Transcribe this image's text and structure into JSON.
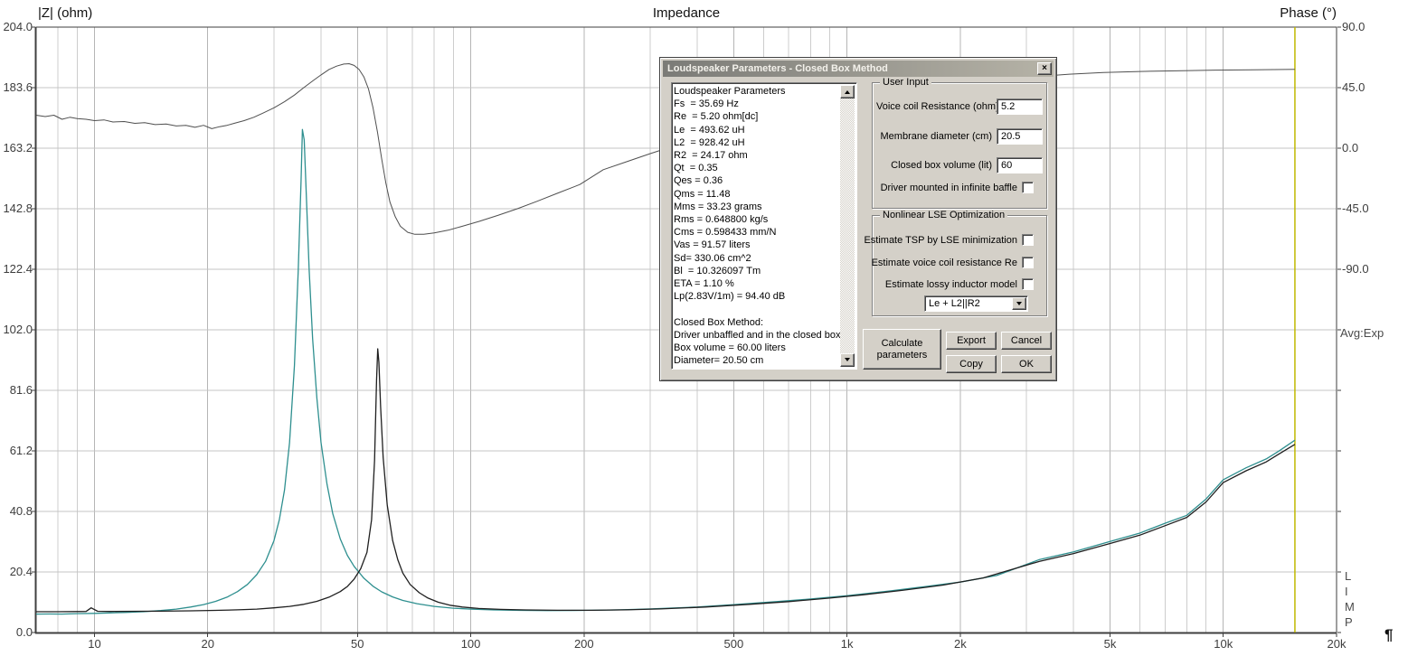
{
  "window": {
    "title": "Loudspeaker Parameters - Closed Box Method",
    "close_glyph": "×"
  },
  "parameters_list": {
    "lines": [
      "Loudspeaker Parameters",
      "Fs  = 35.69 Hz",
      "Re  = 5.20 ohm[dc]",
      "Le  = 493.62 uH",
      "L2  = 928.42 uH",
      "R2  = 24.17 ohm",
      "Qt  = 0.35",
      "Qes = 0.36",
      "Qms = 11.48",
      "Mms = 33.23 grams",
      "Rms = 0.648800 kg/s",
      "Cms = 0.598433 mm/N",
      "Vas = 91.57 liters",
      "Sd= 330.06 cm^2",
      "Bl  = 10.326097 Tm",
      "ETA = 1.10 %",
      "Lp(2.83V/1m) = 94.40 dB",
      "",
      "Closed Box Method:",
      "Driver unbaffled and in the closed box",
      "Box volume = 60.00 liters",
      "Diameter= 20.50 cm"
    ]
  },
  "user_input": {
    "group_label": "User Input",
    "fields": [
      {
        "label": "Voice coil Resistance (ohm)",
        "value": "5.2"
      },
      {
        "label": "Membrane diameter (cm)",
        "value": "20.5"
      },
      {
        "label": "Closed box volume (lit)",
        "value": "60"
      }
    ],
    "baffle_checkbox_label": "Driver mounted in infinite baffle",
    "baffle_checked": false
  },
  "lse": {
    "group_label": "Nonlinear LSE Optimization",
    "checkboxes": [
      "Estimate TSP by LSE minimization",
      "Estimate voice coil resistance Re",
      "Estimate lossy inductor model"
    ],
    "inductor_model": "Le + L2||R2"
  },
  "buttons": {
    "calculate": "Calculate parameters",
    "export": "Export",
    "cancel": "Cancel",
    "copy": "Copy",
    "ok": "OK"
  },
  "chart": {
    "title": "Impedance",
    "left_axis_title": "|Z| (ohm)",
    "right_axis_title": "Phase (°)",
    "avg_label": "Avg:Exp",
    "watermark": "L\nI\nM\nP",
    "pilcrow": "¶",
    "left_tick_labels": [
      "204.0",
      "183.6",
      "163.2",
      "142.8",
      "122.4",
      "102.0",
      "81.6",
      "61.2",
      "40.8",
      "20.4",
      "0.0"
    ],
    "right_tick_labels": [
      "90.0",
      "45.0",
      "0.0",
      "-45.0",
      "-90.0"
    ],
    "x_ticks": [
      {
        "f": 10,
        "label": "10"
      },
      {
        "f": 20,
        "label": "20"
      },
      {
        "f": 50,
        "label": "50"
      },
      {
        "f": 100,
        "label": "100"
      },
      {
        "f": 200,
        "label": "200"
      },
      {
        "f": 500,
        "label": "500"
      },
      {
        "f": 1000,
        "label": "1k"
      },
      {
        "f": 2000,
        "label": "2k"
      },
      {
        "f": 5000,
        "label": "5k"
      },
      {
        "f": 10000,
        "label": "10k"
      },
      {
        "f": 20000,
        "label": "20k"
      }
    ],
    "colors": {
      "grid_minor": "#cdcdcd",
      "grid_major": "#b5b5b5",
      "grid_horizontal": "#c4c4c4",
      "border": "#3f3f3f",
      "cursor": "#c0b800",
      "free_air": "#2e8f8f",
      "closed_box": "#1f1f1f",
      "phase": "#4f4f4f"
    }
  },
  "chart_data": {
    "type": "line",
    "title": "Impedance",
    "x_axis": {
      "scale": "log",
      "unit": "Hz",
      "min_hz": 7,
      "max_hz": 20000,
      "labeled_ticks": [
        10,
        20,
        50,
        100,
        200,
        500,
        1000,
        2000,
        5000,
        10000,
        20000
      ]
    },
    "y_left_axis": {
      "label": "|Z| (ohm)",
      "min": 0,
      "max": 204,
      "major_step": 20.4
    },
    "y_right_axis": {
      "label": "Phase (°)",
      "top_value": 90,
      "degrees_per_division": 45,
      "labeled_values": [
        90,
        45,
        0,
        -45,
        -90
      ]
    },
    "cursor_hz": 15500,
    "legend": "none",
    "grid": true,
    "series": [
      {
        "name": "impedance-free-air",
        "unit": "ohm",
        "axis": "left",
        "color": "#2e8f8f",
        "points": [
          [
            7,
            6.2
          ],
          [
            7.6,
            6.25
          ],
          [
            8.2,
            6.2
          ],
          [
            9,
            6.35
          ],
          [
            10,
            6.45
          ],
          [
            11,
            6.6
          ],
          [
            12,
            6.75
          ],
          [
            13.5,
            7.0
          ],
          [
            15,
            7.4
          ],
          [
            16.5,
            7.9
          ],
          [
            18,
            8.6
          ],
          [
            19.5,
            9.4
          ],
          [
            21,
            10.5
          ],
          [
            22.5,
            11.9
          ],
          [
            24,
            13.8
          ],
          [
            25.5,
            16.2
          ],
          [
            27,
            19.5
          ],
          [
            28.5,
            24
          ],
          [
            30,
            31
          ],
          [
            31,
            38
          ],
          [
            32,
            48
          ],
          [
            33,
            64
          ],
          [
            34,
            90
          ],
          [
            34.8,
            122
          ],
          [
            35.4,
            152
          ],
          [
            35.7,
            169.5
          ],
          [
            36.1,
            166
          ],
          [
            36.6,
            146
          ],
          [
            37.2,
            122
          ],
          [
            38,
            99
          ],
          [
            39,
            79
          ],
          [
            40,
            64
          ],
          [
            41.5,
            50
          ],
          [
            43,
            40
          ],
          [
            45,
            31.5
          ],
          [
            47,
            26
          ],
          [
            49,
            22.3
          ],
          [
            52,
            18.3
          ],
          [
            55,
            15.6
          ],
          [
            58,
            13.7
          ],
          [
            62,
            12.0
          ],
          [
            66,
            10.8
          ],
          [
            72,
            9.7
          ],
          [
            80,
            8.8
          ],
          [
            90,
            8.2
          ],
          [
            100,
            7.9
          ],
          [
            115,
            7.6
          ],
          [
            135,
            7.45
          ],
          [
            160,
            7.4
          ],
          [
            200,
            7.45
          ],
          [
            250,
            7.65
          ],
          [
            300,
            7.95
          ],
          [
            400,
            8.6
          ],
          [
            500,
            9.4
          ],
          [
            650,
            10.4
          ],
          [
            800,
            11.3
          ],
          [
            1000,
            12.4
          ],
          [
            1300,
            14.0
          ],
          [
            1600,
            15.4
          ],
          [
            2000,
            17.0
          ],
          [
            2500,
            19.2
          ],
          [
            3250,
            24.6
          ],
          [
            4000,
            27.2
          ],
          [
            5000,
            30.7
          ],
          [
            6000,
            33.5
          ],
          [
            7000,
            36.8
          ],
          [
            8000,
            39.5
          ],
          [
            9000,
            45
          ],
          [
            10000,
            51.5
          ],
          [
            11500,
            55.5
          ],
          [
            13000,
            58.5
          ],
          [
            14000,
            61
          ],
          [
            15500,
            64.8
          ]
        ]
      },
      {
        "name": "impedance-closed-box",
        "unit": "ohm",
        "axis": "left",
        "color": "#1f1f1f",
        "points": [
          [
            7,
            7.0
          ],
          [
            8,
            7.0
          ],
          [
            9,
            7.05
          ],
          [
            9.5,
            7.1
          ],
          [
            9.8,
            8.3
          ],
          [
            10.2,
            7.15
          ],
          [
            11,
            7.1
          ],
          [
            13,
            7.15
          ],
          [
            15,
            7.2
          ],
          [
            18,
            7.3
          ],
          [
            21,
            7.45
          ],
          [
            24,
            7.65
          ],
          [
            27,
            7.9
          ],
          [
            30,
            8.3
          ],
          [
            33,
            8.8
          ],
          [
            36,
            9.5
          ],
          [
            39,
            10.5
          ],
          [
            42,
            11.9
          ],
          [
            45,
            13.8
          ],
          [
            47,
            15.5
          ],
          [
            49,
            18
          ],
          [
            51,
            21.5
          ],
          [
            53,
            27
          ],
          [
            54.5,
            38
          ],
          [
            55.5,
            58
          ],
          [
            56.2,
            85
          ],
          [
            56.6,
            95.6
          ],
          [
            57.0,
            91
          ],
          [
            57.6,
            76
          ],
          [
            58.5,
            59
          ],
          [
            60,
            43
          ],
          [
            62,
            31
          ],
          [
            64,
            24.5
          ],
          [
            66,
            20
          ],
          [
            69,
            16.2
          ],
          [
            73,
            13.4
          ],
          [
            77,
            11.6
          ],
          [
            82,
            10.2
          ],
          [
            88,
            9.2
          ],
          [
            95,
            8.6
          ],
          [
            105,
            8.1
          ],
          [
            120,
            7.8
          ],
          [
            140,
            7.6
          ],
          [
            170,
            7.5
          ],
          [
            210,
            7.5
          ],
          [
            260,
            7.65
          ],
          [
            320,
            7.95
          ],
          [
            420,
            8.6
          ],
          [
            550,
            9.5
          ],
          [
            700,
            10.4
          ],
          [
            900,
            11.6
          ],
          [
            1100,
            12.7
          ],
          [
            1400,
            14.2
          ],
          [
            1800,
            16.0
          ],
          [
            2300,
            18.4
          ],
          [
            3250,
            24.0
          ],
          [
            4000,
            26.6
          ],
          [
            5000,
            30.0
          ],
          [
            6000,
            32.8
          ],
          [
            7000,
            36.0
          ],
          [
            8000,
            38.8
          ],
          [
            9000,
            44
          ],
          [
            10000,
            50.5
          ],
          [
            11500,
            54.5
          ],
          [
            13000,
            57.5
          ],
          [
            14000,
            60
          ],
          [
            15500,
            63.4
          ]
        ]
      },
      {
        "name": "phase-closed-box",
        "unit": "deg",
        "axis": "right",
        "color": "#4f4f4f",
        "points": [
          [
            7,
            24.5
          ],
          [
            7.4,
            23.5
          ],
          [
            7.8,
            24.5
          ],
          [
            8.2,
            21.5
          ],
          [
            8.6,
            23
          ],
          [
            9,
            22
          ],
          [
            9.5,
            21.5
          ],
          [
            10,
            20.5
          ],
          [
            10.6,
            21
          ],
          [
            11.2,
            19.5
          ],
          [
            12,
            19.8
          ],
          [
            12.8,
            18.5
          ],
          [
            13.6,
            19
          ],
          [
            14.5,
            17.5
          ],
          [
            15.5,
            18
          ],
          [
            16.5,
            16.5
          ],
          [
            17.5,
            17
          ],
          [
            18.5,
            15.5
          ],
          [
            19.5,
            17
          ],
          [
            20.5,
            14.5
          ],
          [
            21.5,
            16
          ],
          [
            22.5,
            17
          ],
          [
            23.5,
            18.5
          ],
          [
            25,
            20.5
          ],
          [
            26.5,
            23
          ],
          [
            28,
            26
          ],
          [
            30,
            30
          ],
          [
            32,
            34.5
          ],
          [
            34,
            39.5
          ],
          [
            36,
            45
          ],
          [
            38,
            50
          ],
          [
            40,
            54.5
          ],
          [
            42,
            58.5
          ],
          [
            44,
            61
          ],
          [
            46,
            62.5
          ],
          [
            47.5,
            62.8
          ],
          [
            49,
            61.5
          ],
          [
            50.5,
            58.5
          ],
          [
            52,
            53
          ],
          [
            53.5,
            44
          ],
          [
            55,
            30
          ],
          [
            56.5,
            12
          ],
          [
            58,
            -8
          ],
          [
            59.5,
            -26
          ],
          [
            61,
            -40
          ],
          [
            63,
            -51
          ],
          [
            65,
            -58
          ],
          [
            68,
            -62.5
          ],
          [
            71,
            -64
          ],
          [
            75,
            -64
          ],
          [
            80,
            -63
          ],
          [
            87,
            -61
          ],
          [
            95,
            -58
          ],
          [
            105,
            -54.5
          ],
          [
            118,
            -50
          ],
          [
            133,
            -45
          ],
          [
            150,
            -39.5
          ],
          [
            170,
            -33.5
          ],
          [
            195,
            -27
          ],
          [
            225,
            -16
          ],
          [
            260,
            -10
          ],
          [
            300,
            -4
          ],
          [
            350,
            2
          ],
          [
            410,
            8
          ],
          [
            480,
            13
          ],
          [
            560,
            18
          ],
          [
            660,
            23
          ],
          [
            780,
            27.5
          ],
          [
            920,
            32
          ],
          [
            1100,
            36
          ],
          [
            1350,
            40
          ],
          [
            1650,
            44
          ],
          [
            2000,
            47.5
          ],
          [
            2500,
            50.5
          ],
          [
            3100,
            53
          ],
          [
            3900,
            55
          ],
          [
            4800,
            56.2
          ],
          [
            6000,
            57
          ],
          [
            7500,
            57.5
          ],
          [
            9500,
            58
          ],
          [
            12000,
            58.2
          ],
          [
            15500,
            58.6
          ]
        ]
      }
    ]
  }
}
